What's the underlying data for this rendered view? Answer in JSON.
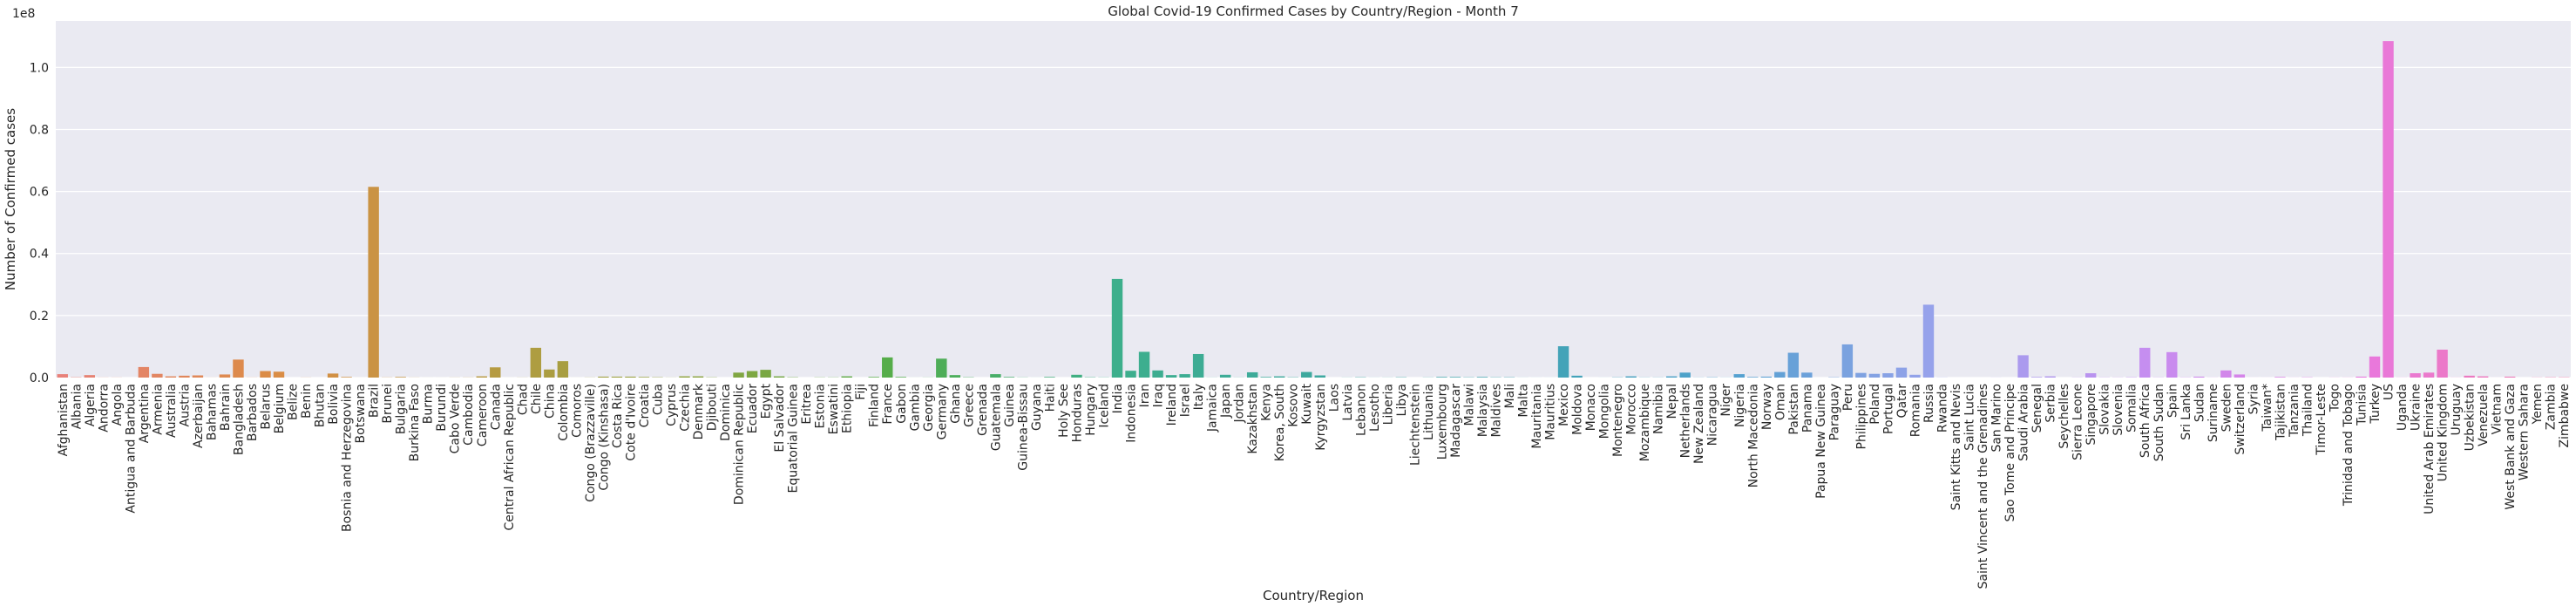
{
  "chart_data": {
    "type": "bar",
    "title": "Global Covid-19 Confirmed Cases by Country/Region - Month 7",
    "xlabel": "Country/Region",
    "ylabel": "Number of Confirmed cases",
    "y_offset_label": "1e8",
    "ylim": [
      0,
      1.15
    ],
    "y_unit_multiplier": 100000000,
    "y_ticks": [
      "0.0",
      "0.2",
      "0.4",
      "0.6",
      "0.8",
      "1.0"
    ],
    "grid": true,
    "legend": "none",
    "categories": [
      "Afghanistan",
      "Albania",
      "Algeria",
      "Andorra",
      "Angola",
      "Antigua and Barbuda",
      "Argentina",
      "Armenia",
      "Australia",
      "Austria",
      "Azerbaijan",
      "Bahamas",
      "Bahrain",
      "Bangladesh",
      "Barbados",
      "Belarus",
      "Belgium",
      "Belize",
      "Benin",
      "Bhutan",
      "Bolivia",
      "Bosnia and Herzegovina",
      "Botswana",
      "Brazil",
      "Brunei",
      "Bulgaria",
      "Burkina Faso",
      "Burma",
      "Burundi",
      "Cabo Verde",
      "Cambodia",
      "Cameroon",
      "Canada",
      "Central African Republic",
      "Chad",
      "Chile",
      "China",
      "Colombia",
      "Comoros",
      "Congo (Brazzaville)",
      "Congo (Kinshasa)",
      "Costa Rica",
      "Cote d'Ivoire",
      "Croatia",
      "Cuba",
      "Cyprus",
      "Czechia",
      "Denmark",
      "Djibouti",
      "Dominica",
      "Dominican Republic",
      "Ecuador",
      "Egypt",
      "El Salvador",
      "Equatorial Guinea",
      "Eritrea",
      "Estonia",
      "Eswatini",
      "Ethiopia",
      "Fiji",
      "Finland",
      "France",
      "Gabon",
      "Gambia",
      "Georgia",
      "Germany",
      "Ghana",
      "Greece",
      "Grenada",
      "Guatemala",
      "Guinea",
      "Guinea-Bissau",
      "Guyana",
      "Haiti",
      "Holy See",
      "Honduras",
      "Hungary",
      "Iceland",
      "India",
      "Indonesia",
      "Iran",
      "Iraq",
      "Ireland",
      "Israel",
      "Italy",
      "Jamaica",
      "Japan",
      "Jordan",
      "Kazakhstan",
      "Kenya",
      "Korea, South",
      "Kosovo",
      "Kuwait",
      "Kyrgyzstan",
      "Laos",
      "Latvia",
      "Lebanon",
      "Lesotho",
      "Liberia",
      "Libya",
      "Liechtenstein",
      "Lithuania",
      "Luxembourg",
      "Madagascar",
      "Malawi",
      "Malaysia",
      "Maldives",
      "Mali",
      "Malta",
      "Mauritania",
      "Mauritius",
      "Mexico",
      "Moldova",
      "Monaco",
      "Mongolia",
      "Montenegro",
      "Morocco",
      "Mozambique",
      "Namibia",
      "Nepal",
      "Netherlands",
      "New Zealand",
      "Nicaragua",
      "Niger",
      "Nigeria",
      "North Macedonia",
      "Norway",
      "Oman",
      "Pakistan",
      "Panama",
      "Papua New Guinea",
      "Paraguay",
      "Peru",
      "Philippines",
      "Poland",
      "Portugal",
      "Qatar",
      "Romania",
      "Russia",
      "Rwanda",
      "Saint Kitts and Nevis",
      "Saint Lucia",
      "Saint Vincent and the Grenadines",
      "San Marino",
      "Sao Tome and Principe",
      "Saudi Arabia",
      "Senegal",
      "Serbia",
      "Seychelles",
      "Sierra Leone",
      "Singapore",
      "Slovakia",
      "Slovenia",
      "Somalia",
      "South Africa",
      "South Sudan",
      "Spain",
      "Sri Lanka",
      "Sudan",
      "Suriname",
      "Sweden",
      "Switzerland",
      "Syria",
      "Taiwan*",
      "Tajikistan",
      "Tanzania",
      "Thailand",
      "Timor-Leste",
      "Togo",
      "Trinidad and Tobago",
      "Tunisia",
      "Turkey",
      "US",
      "Uganda",
      "Ukraine",
      "United Arab Emirates",
      "United Kingdom",
      "Uruguay",
      "Uzbekistan",
      "Venezuela",
      "Vietnam",
      "West Bank and Gaza",
      "Western Sahara",
      "Yemen",
      "Zambia",
      "Zimbabwe"
    ],
    "values": [
      0.011,
      0.001,
      0.008,
      0.0003,
      0.0003,
      0.0,
      0.034,
      0.012,
      0.004,
      0.006,
      0.007,
      0.0002,
      0.01,
      0.058,
      0.0003,
      0.021,
      0.019,
      0.0,
      0.0003,
      0.0,
      0.013,
      0.002,
      0.0001,
      0.615,
      0.0005,
      0.002,
      0.0003,
      0.0001,
      0.0001,
      0.0003,
      0.0004,
      0.004,
      0.033,
      0.0001,
      0.0003,
      0.096,
      0.026,
      0.053,
      0.0001,
      0.0004,
      0.003,
      0.003,
      0.003,
      0.002,
      0.001,
      0.0003,
      0.004,
      0.004,
      0.0008,
      0.0,
      0.016,
      0.021,
      0.025,
      0.004,
      0.001,
      0.0,
      0.0006,
      0.0006,
      0.004,
      0.0,
      0.002,
      0.065,
      0.002,
      0.0001,
      0.0003,
      0.061,
      0.008,
      0.001,
      0.0,
      0.011,
      0.002,
      0.0005,
      0.0001,
      0.002,
      0.0,
      0.009,
      0.001,
      0.0006,
      0.318,
      0.022,
      0.083,
      0.023,
      0.008,
      0.011,
      0.076,
      0.0003,
      0.009,
      0.0004,
      0.017,
      0.002,
      0.004,
      0.001,
      0.018,
      0.007,
      0.0,
      0.0003,
      0.001,
      0.0002,
      0.0003,
      0.001,
      0.0,
      0.0005,
      0.002,
      0.002,
      0.0009,
      0.002,
      0.0009,
      0.001,
      0.0002,
      0.0001,
      0.0001,
      0.101,
      0.006,
      0.0,
      0.0001,
      0.0008,
      0.004,
      0.0005,
      0.0005,
      0.004,
      0.016,
      0.0004,
      0.0009,
      0.0003,
      0.011,
      0.002,
      0.003,
      0.018,
      0.08,
      0.016,
      0.0,
      0.001,
      0.107,
      0.015,
      0.012,
      0.014,
      0.032,
      0.009,
      0.235,
      0.0004,
      0.0,
      0.0,
      0.0,
      0.0002,
      0.0,
      0.072,
      0.002,
      0.004,
      0.0,
      0.0005,
      0.014,
      0.0006,
      0.0005,
      0.001,
      0.096,
      0.0006,
      0.082,
      0.0007,
      0.003,
      0.0003,
      0.023,
      0.01,
      0.0001,
      0.0001,
      0.002,
      0.0002,
      0.0009,
      0.0,
      0.0003,
      0.0003,
      0.003,
      0.068,
      1.085,
      0.0003,
      0.014,
      0.016,
      0.09,
      0.0003,
      0.006,
      0.004,
      0.0001,
      0.003,
      0.0,
      0.0005,
      0.001,
      0.001
    ],
    "palette_hues": [
      "#e8817a",
      "#db8c45",
      "#b99a42",
      "#8fa43f",
      "#53ad4a",
      "#3daf8b",
      "#3ea99f",
      "#3fa4b2",
      "#52a1cf",
      "#9aa2ec",
      "#c58ef0",
      "#e878e0",
      "#f07aa8"
    ]
  }
}
